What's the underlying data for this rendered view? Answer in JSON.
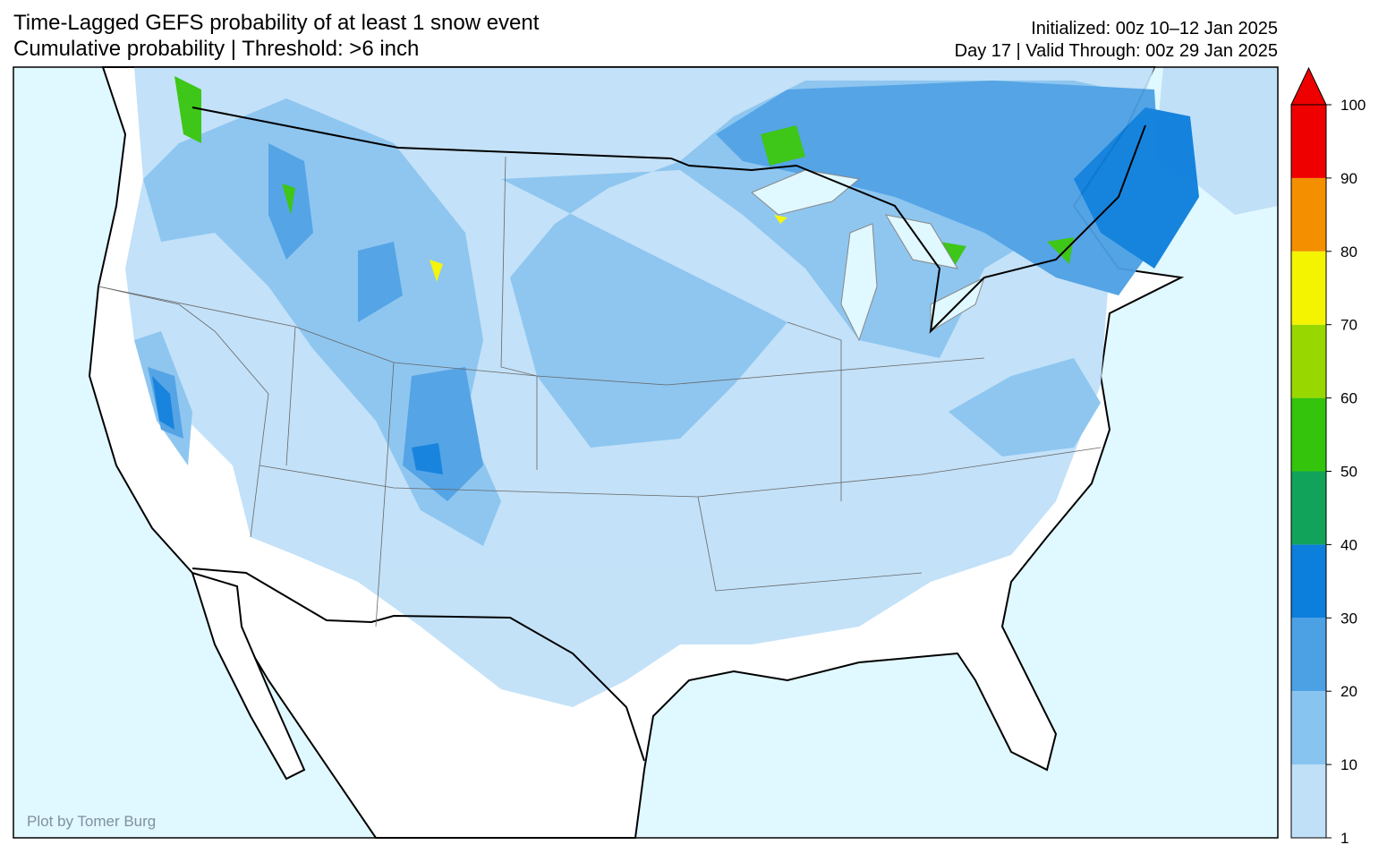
{
  "header": {
    "title": "Time-Lagged GEFS probability of at least 1 snow event",
    "subtitle": "Cumulative probability | Threshold: >6 inch",
    "init": "Initialized: 00z 10–12 Jan 2025",
    "valid": "Day 17 | Valid Through: 00z 29 Jan 2025"
  },
  "credit": "Plot by Tomer Burg",
  "colorbar": {
    "ticks": [
      1,
      10,
      20,
      30,
      40,
      50,
      60,
      70,
      80,
      90,
      100
    ],
    "colors": [
      "#c0e0f8",
      "#88c4f0",
      "#4ca0e4",
      "#0c7edc",
      "#12a35a",
      "#34c40c",
      "#98d800",
      "#f4f400",
      "#f49000",
      "#ee0000"
    ],
    "extend_color": "#ee0000"
  }
}
